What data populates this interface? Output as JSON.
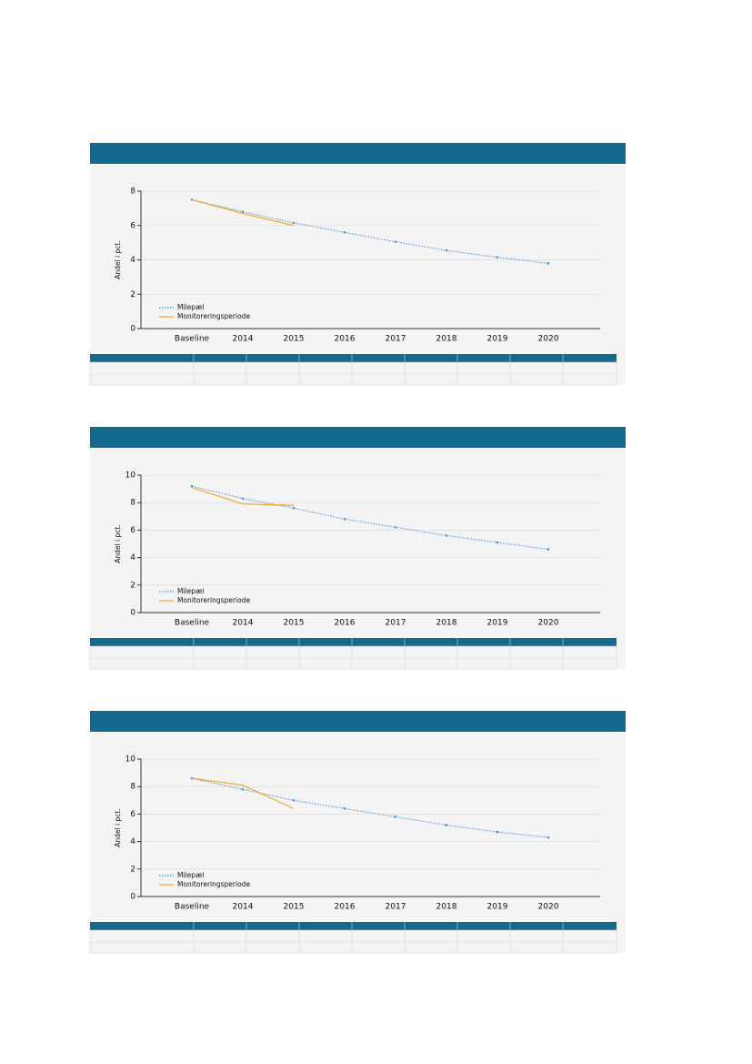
{
  "chart_data": [
    {
      "type": "line",
      "ylabel": "Andel i pct.",
      "categories": [
        "Baseline",
        "2014",
        "2015",
        "2016",
        "2017",
        "2018",
        "2019",
        "2020"
      ],
      "ylim": [
        0,
        8
      ],
      "yticks": [
        0,
        2,
        4,
        6,
        8
      ],
      "grid": true,
      "legend": "lower left",
      "series": [
        {
          "name": "Milepæl",
          "color": "#4a90d9",
          "style": "dotted",
          "values": [
            7.5,
            6.8,
            6.15,
            5.6,
            5.05,
            4.55,
            4.15,
            3.8
          ]
        },
        {
          "name": "Monitoreringsperiode",
          "color": "#f5a623",
          "style": "solid",
          "values": [
            7.5,
            6.7,
            6.0,
            null,
            null,
            null,
            null,
            null
          ]
        }
      ]
    },
    {
      "type": "line",
      "ylabel": "Andel i pct.",
      "categories": [
        "Baseline",
        "2014",
        "2015",
        "2016",
        "2017",
        "2018",
        "2019",
        "2020"
      ],
      "ylim": [
        0,
        10
      ],
      "yticks": [
        0,
        2,
        4,
        6,
        8,
        10
      ],
      "grid": true,
      "legend": "lower left",
      "series": [
        {
          "name": "Milepæl",
          "color": "#4a90d9",
          "style": "dotted",
          "values": [
            9.2,
            8.3,
            7.6,
            6.8,
            6.2,
            5.6,
            5.1,
            4.6
          ]
        },
        {
          "name": "Monitoreringsperiode",
          "color": "#f5a623",
          "style": "solid",
          "values": [
            9.1,
            7.9,
            7.8,
            null,
            null,
            null,
            null,
            null
          ]
        }
      ]
    },
    {
      "type": "line",
      "ylabel": "Andel i pct.",
      "categories": [
        "Baseline",
        "2014",
        "2015",
        "2016",
        "2017",
        "2018",
        "2019",
        "2020"
      ],
      "ylim": [
        0,
        10
      ],
      "yticks": [
        0,
        2,
        4,
        6,
        8,
        10
      ],
      "grid": true,
      "legend": "lower left",
      "series": [
        {
          "name": "Milepæl",
          "color": "#4a90d9",
          "style": "dotted",
          "values": [
            8.6,
            7.8,
            7.0,
            6.4,
            5.8,
            5.2,
            4.7,
            4.3
          ]
        },
        {
          "name": "Monitoreringsperiode",
          "color": "#f5a623",
          "style": "solid",
          "values": [
            8.6,
            8.1,
            6.4,
            null,
            null,
            null,
            null,
            null
          ]
        }
      ]
    }
  ]
}
